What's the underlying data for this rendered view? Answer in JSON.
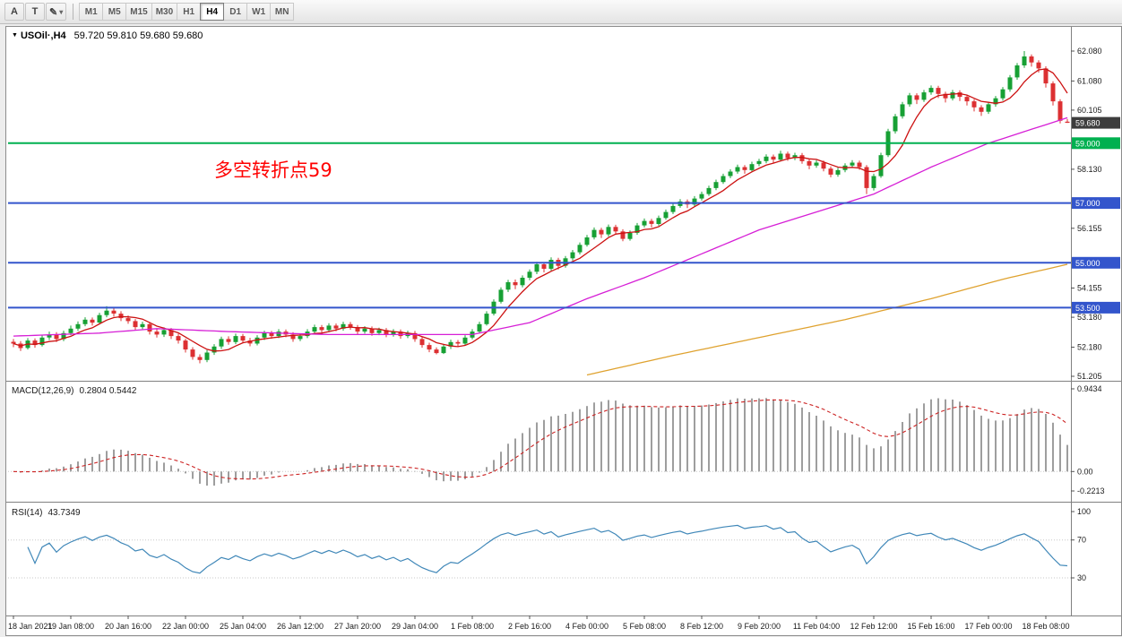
{
  "toolbar": {
    "tools": [
      {
        "label": "A"
      },
      {
        "label": "T"
      },
      {
        "label": "✎"
      }
    ],
    "timeframes": [
      "M1",
      "M5",
      "M15",
      "M30",
      "H1",
      "H4",
      "D1",
      "W1",
      "MN"
    ],
    "active_timeframe": "H4"
  },
  "icons": {
    "dropdown": "▼",
    "caret": "▾"
  },
  "chart": {
    "title": "USOil·,H4",
    "ohlc_display": "59.720 59.810 59.680 59.680",
    "annotation": "多空转折点59",
    "price_axis_labels": [
      "62.080",
      "61.080",
      "60.105",
      "58.130",
      "56.155",
      "54.155",
      "53.180",
      "52.180",
      "51.205"
    ],
    "current_price": {
      "label": "59.680",
      "price": 59.68,
      "color": "#3d3d3d"
    },
    "levels": [
      {
        "label": "59.000",
        "price": 59.0,
        "color": "#00b050"
      },
      {
        "label": "57.000",
        "price": 57.0,
        "color": "#3355cc"
      },
      {
        "label": "55.000",
        "price": 55.0,
        "color": "#3355cc"
      },
      {
        "label": "53.500",
        "price": 53.5,
        "color": "#3355cc"
      }
    ],
    "colors": {
      "up": "#17a034",
      "down": "#dc3032"
    },
    "moving_averages": [
      {
        "name": "fast-ma-line",
        "color": "#cc1111",
        "type": "sma",
        "period": 6
      },
      {
        "name": "mid-ma-line",
        "color": "#d61fd6",
        "type": "points",
        "points": [
          [
            0,
            52.55
          ],
          [
            12,
            52.65
          ],
          [
            20,
            52.8
          ],
          [
            30,
            52.7
          ],
          [
            44,
            52.6
          ],
          [
            56,
            52.6
          ],
          [
            64,
            52.6
          ],
          [
            72,
            53.0
          ],
          [
            80,
            53.8
          ],
          [
            88,
            54.5
          ],
          [
            96,
            55.3
          ],
          [
            104,
            56.1
          ],
          [
            112,
            56.7
          ],
          [
            120,
            57.3
          ],
          [
            128,
            58.2
          ],
          [
            136,
            59.0
          ],
          [
            147,
            59.85
          ]
        ]
      },
      {
        "name": "slow-ma-line",
        "color": "#dfa22f",
        "type": "points",
        "points": [
          [
            80,
            51.25
          ],
          [
            92,
            51.9
          ],
          [
            104,
            52.5
          ],
          [
            116,
            53.1
          ],
          [
            128,
            53.8
          ],
          [
            138,
            54.45
          ],
          [
            147,
            54.95
          ]
        ]
      }
    ],
    "candles": [
      [
        52.36,
        52.45,
        52.18,
        52.3
      ],
      [
        52.3,
        52.38,
        52.05,
        52.15
      ],
      [
        52.15,
        52.48,
        52.1,
        52.4
      ],
      [
        52.4,
        52.47,
        52.16,
        52.25
      ],
      [
        52.25,
        52.58,
        52.2,
        52.5
      ],
      [
        52.5,
        52.7,
        52.42,
        52.6
      ],
      [
        52.6,
        52.68,
        52.35,
        52.45
      ],
      [
        52.45,
        52.73,
        52.38,
        52.65
      ],
      [
        52.65,
        52.9,
        52.58,
        52.8
      ],
      [
        52.8,
        53.04,
        52.72,
        52.95
      ],
      [
        52.95,
        53.18,
        52.88,
        53.1
      ],
      [
        53.1,
        53.17,
        52.9,
        53.0
      ],
      [
        53.0,
        53.33,
        52.94,
        53.25
      ],
      [
        53.25,
        53.55,
        53.18,
        53.4
      ],
      [
        53.4,
        53.5,
        53.2,
        53.3
      ],
      [
        53.3,
        53.38,
        53.05,
        53.15
      ],
      [
        53.15,
        53.24,
        52.96,
        53.05
      ],
      [
        53.05,
        53.12,
        52.76,
        52.85
      ],
      [
        52.85,
        53.03,
        52.78,
        52.95
      ],
      [
        52.95,
        53.02,
        52.6,
        52.7
      ],
      [
        52.7,
        52.79,
        52.5,
        52.6
      ],
      [
        52.6,
        52.84,
        52.52,
        52.75
      ],
      [
        52.75,
        52.82,
        52.45,
        52.55
      ],
      [
        52.55,
        52.63,
        52.3,
        52.4
      ],
      [
        52.4,
        52.46,
        52.0,
        52.1
      ],
      [
        52.1,
        52.18,
        51.76,
        51.85
      ],
      [
        51.85,
        51.94,
        51.64,
        51.75
      ],
      [
        51.75,
        52.08,
        51.68,
        52.0
      ],
      [
        52.0,
        52.28,
        51.92,
        52.2
      ],
      [
        52.2,
        52.53,
        52.12,
        52.45
      ],
      [
        52.45,
        52.54,
        52.26,
        52.35
      ],
      [
        52.35,
        52.63,
        52.28,
        52.55
      ],
      [
        52.55,
        52.62,
        52.31,
        52.4
      ],
      [
        52.4,
        52.49,
        52.21,
        52.3
      ],
      [
        52.3,
        52.58,
        52.24,
        52.5
      ],
      [
        52.5,
        52.73,
        52.42,
        52.65
      ],
      [
        52.65,
        52.72,
        52.46,
        52.55
      ],
      [
        52.55,
        52.78,
        52.48,
        52.7
      ],
      [
        52.7,
        52.77,
        52.51,
        52.6
      ],
      [
        52.6,
        52.68,
        52.36,
        52.45
      ],
      [
        52.45,
        52.63,
        52.38,
        52.55
      ],
      [
        52.55,
        52.78,
        52.48,
        52.7
      ],
      [
        52.7,
        52.93,
        52.62,
        52.85
      ],
      [
        52.85,
        52.92,
        52.66,
        52.75
      ],
      [
        52.75,
        52.98,
        52.68,
        52.9
      ],
      [
        52.9,
        52.97,
        52.71,
        52.8
      ],
      [
        52.8,
        53.03,
        52.73,
        52.95
      ],
      [
        52.95,
        53.02,
        52.76,
        52.85
      ],
      [
        52.85,
        52.92,
        52.61,
        52.7
      ],
      [
        52.7,
        52.88,
        52.63,
        52.8
      ],
      [
        52.8,
        52.87,
        52.56,
        52.65
      ],
      [
        52.65,
        52.83,
        52.58,
        52.75
      ],
      [
        52.75,
        52.82,
        52.51,
        52.6
      ],
      [
        52.6,
        52.78,
        52.53,
        52.7
      ],
      [
        52.7,
        52.77,
        52.46,
        52.55
      ],
      [
        52.55,
        52.73,
        52.48,
        52.65
      ],
      [
        52.65,
        52.72,
        52.36,
        52.45
      ],
      [
        52.45,
        52.53,
        52.16,
        52.25
      ],
      [
        52.25,
        52.33,
        52.01,
        52.1
      ],
      [
        52.1,
        52.17,
        51.94,
        51.98
      ],
      [
        51.98,
        52.28,
        51.95,
        52.2
      ],
      [
        52.2,
        52.43,
        52.12,
        52.35
      ],
      [
        52.35,
        52.42,
        52.21,
        52.3
      ],
      [
        52.3,
        52.58,
        52.24,
        52.5
      ],
      [
        52.5,
        52.78,
        52.44,
        52.7
      ],
      [
        52.7,
        53.03,
        52.64,
        52.95
      ],
      [
        52.95,
        53.38,
        52.9,
        53.3
      ],
      [
        53.3,
        53.78,
        53.24,
        53.7
      ],
      [
        53.7,
        54.18,
        53.64,
        54.1
      ],
      [
        54.1,
        54.43,
        54.02,
        54.35
      ],
      [
        54.35,
        54.44,
        54.12,
        54.25
      ],
      [
        54.25,
        54.58,
        54.18,
        54.5
      ],
      [
        54.5,
        54.78,
        54.42,
        54.7
      ],
      [
        54.7,
        55.03,
        54.62,
        54.95
      ],
      [
        54.95,
        55.02,
        54.68,
        54.8
      ],
      [
        54.8,
        55.18,
        54.74,
        55.1
      ],
      [
        55.1,
        55.17,
        54.78,
        54.9
      ],
      [
        54.9,
        55.23,
        54.84,
        55.15
      ],
      [
        55.15,
        55.43,
        55.08,
        55.35
      ],
      [
        55.35,
        55.68,
        55.28,
        55.6
      ],
      [
        55.6,
        55.93,
        55.54,
        55.85
      ],
      [
        55.85,
        56.18,
        55.78,
        56.1
      ],
      [
        56.1,
        56.17,
        55.83,
        55.95
      ],
      [
        55.95,
        56.28,
        55.88,
        56.2
      ],
      [
        56.2,
        56.27,
        55.95,
        56.05
      ],
      [
        56.05,
        56.12,
        55.72,
        55.8
      ],
      [
        55.8,
        56.08,
        55.74,
        56.0
      ],
      [
        56.0,
        56.33,
        55.94,
        56.25
      ],
      [
        56.25,
        56.48,
        56.18,
        56.4
      ],
      [
        56.4,
        56.47,
        56.18,
        56.3
      ],
      [
        56.3,
        56.58,
        56.24,
        56.5
      ],
      [
        56.5,
        56.78,
        56.44,
        56.7
      ],
      [
        56.7,
        56.98,
        56.63,
        56.9
      ],
      [
        56.9,
        57.13,
        56.84,
        57.05
      ],
      [
        57.05,
        57.12,
        56.83,
        56.95
      ],
      [
        56.95,
        57.23,
        56.89,
        57.15
      ],
      [
        57.15,
        57.38,
        57.08,
        57.3
      ],
      [
        57.3,
        57.58,
        57.24,
        57.5
      ],
      [
        57.5,
        57.78,
        57.43,
        57.7
      ],
      [
        57.7,
        57.98,
        57.64,
        57.9
      ],
      [
        57.9,
        58.13,
        57.83,
        58.05
      ],
      [
        58.05,
        58.28,
        57.98,
        58.2
      ],
      [
        58.2,
        58.27,
        57.98,
        58.1
      ],
      [
        58.1,
        58.38,
        58.04,
        58.3
      ],
      [
        58.3,
        58.48,
        58.23,
        58.4
      ],
      [
        58.4,
        58.63,
        58.33,
        58.55
      ],
      [
        58.55,
        58.62,
        58.33,
        58.45
      ],
      [
        58.45,
        58.75,
        58.39,
        58.65
      ],
      [
        58.65,
        58.72,
        58.41,
        58.5
      ],
      [
        58.5,
        58.68,
        58.43,
        58.6
      ],
      [
        58.6,
        58.67,
        58.31,
        58.4
      ],
      [
        58.4,
        58.47,
        58.13,
        58.25
      ],
      [
        58.25,
        58.43,
        58.18,
        58.35
      ],
      [
        58.35,
        58.42,
        58.06,
        58.15
      ],
      [
        58.15,
        58.22,
        57.86,
        57.95
      ],
      [
        57.95,
        58.18,
        57.88,
        58.1
      ],
      [
        58.1,
        58.33,
        58.03,
        58.25
      ],
      [
        58.25,
        58.43,
        58.18,
        58.35
      ],
      [
        58.35,
        58.42,
        58.11,
        58.2
      ],
      [
        58.2,
        58.27,
        57.3,
        57.5
      ],
      [
        57.5,
        57.98,
        57.42,
        57.9
      ],
      [
        57.9,
        58.68,
        57.84,
        58.6
      ],
      [
        58.6,
        59.48,
        58.54,
        59.4
      ],
      [
        59.4,
        59.98,
        59.32,
        59.9
      ],
      [
        59.9,
        60.38,
        59.82,
        60.3
      ],
      [
        60.3,
        60.68,
        60.22,
        60.6
      ],
      [
        60.6,
        60.67,
        60.31,
        60.45
      ],
      [
        60.45,
        60.78,
        60.38,
        60.7
      ],
      [
        60.7,
        60.93,
        60.62,
        60.85
      ],
      [
        60.85,
        60.92,
        60.51,
        60.65
      ],
      [
        60.65,
        60.72,
        60.36,
        60.5
      ],
      [
        60.5,
        60.78,
        60.43,
        60.7
      ],
      [
        60.7,
        60.77,
        60.41,
        60.55
      ],
      [
        60.55,
        60.62,
        60.26,
        60.4
      ],
      [
        60.4,
        60.47,
        60.06,
        60.2
      ],
      [
        60.2,
        60.27,
        59.91,
        60.05
      ],
      [
        60.05,
        60.38,
        59.98,
        60.3
      ],
      [
        60.3,
        60.58,
        60.22,
        60.5
      ],
      [
        60.5,
        60.88,
        60.42,
        60.8
      ],
      [
        60.8,
        61.28,
        60.72,
        61.2
      ],
      [
        61.2,
        61.68,
        61.12,
        61.6
      ],
      [
        61.6,
        62.08,
        61.52,
        61.9
      ],
      [
        61.9,
        61.97,
        61.56,
        61.7
      ],
      [
        61.7,
        61.77,
        61.36,
        61.5
      ],
      [
        61.5,
        61.57,
        60.86,
        61.0
      ],
      [
        61.0,
        61.07,
        60.26,
        60.4
      ],
      [
        60.4,
        60.47,
        59.66,
        59.75
      ],
      [
        59.72,
        59.81,
        59.68,
        59.68
      ]
    ]
  },
  "macd": {
    "label": "MACD(12,26,9)",
    "values": "0.2804 0.5442",
    "axis_labels": [
      "0.9434",
      "0.00",
      "-0.2213"
    ],
    "params": {
      "fast": 12,
      "slow": 26,
      "signal": 9
    }
  },
  "rsi": {
    "label": "RSI(14)",
    "value": "43.7349",
    "period": 14,
    "levels": [
      70,
      30
    ],
    "axis_labels": [
      "100",
      "70",
      "30"
    ]
  },
  "time_axis": {
    "labels": [
      "18 Jan 2021",
      "19 Jan 08:00",
      "20 Jan 16:00",
      "22 Jan 00:00",
      "25 Jan 04:00",
      "26 Jan 12:00",
      "27 Jan 20:00",
      "29 Jan 04:00",
      "1 Feb 08:00",
      "2 Feb 16:00",
      "4 Feb 00:00",
      "5 Feb 08:00",
      "8 Feb 12:00",
      "9 Feb 20:00",
      "11 Feb 04:00",
      "12 Feb 12:00",
      "15 Feb 16:00",
      "17 Feb 00:00",
      "18 Feb 08:00"
    ]
  }
}
